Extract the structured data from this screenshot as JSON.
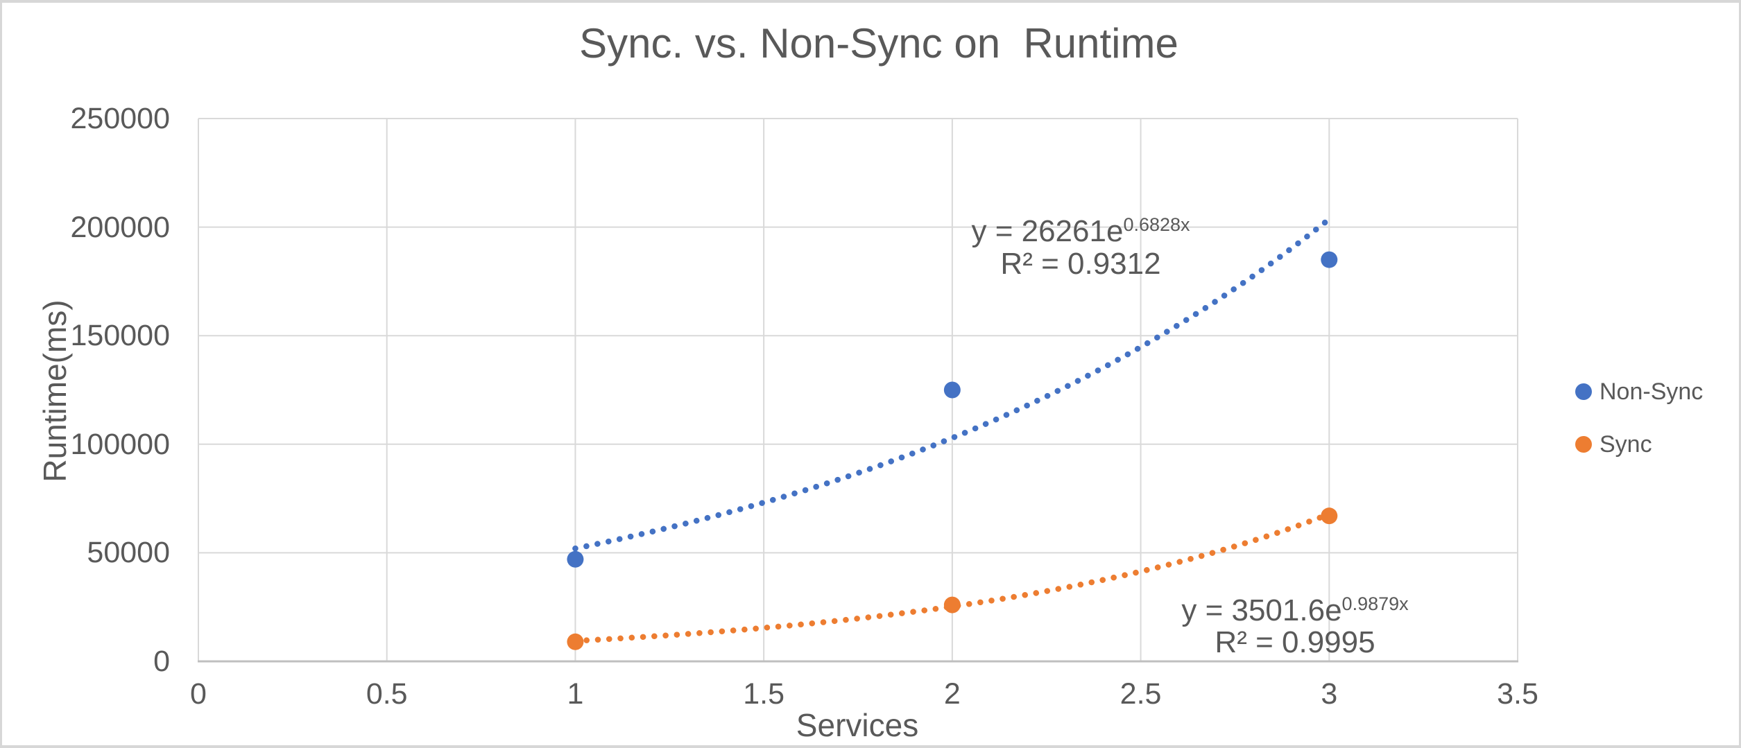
{
  "colors": {
    "non_sync": "#4472C4",
    "sync": "#ED7D31",
    "text": "#595959",
    "gridline": "#D9D9D9",
    "axis_line": "#BFBFBF",
    "frame_border": "#D7D7D7"
  },
  "chart_data": {
    "type": "scatter",
    "title": "Sync. vs. Non-Sync on  Runtime",
    "xlabel": "Services",
    "ylabel": "Runtime(ms)",
    "xlim": [
      0,
      3.5
    ],
    "ylim": [
      0,
      250000
    ],
    "grid": true,
    "legend_position": "right",
    "x_ticks": [
      0,
      0.5,
      1,
      1.5,
      2,
      2.5,
      3,
      3.5
    ],
    "x_tick_labels": [
      "0",
      "0.5",
      "1",
      "1.5",
      "2",
      "2.5",
      "3",
      "3.5"
    ],
    "y_ticks": [
      0,
      50000,
      100000,
      150000,
      200000,
      250000
    ],
    "y_tick_labels": [
      "0",
      "50000",
      "100000",
      "150000",
      "200000",
      "250000"
    ],
    "series": [
      {
        "name": "Non-Sync",
        "color": "#4472C4",
        "points": [
          {
            "x": 1,
            "y": 47000
          },
          {
            "x": 2,
            "y": 125000
          },
          {
            "x": 3,
            "y": 185000
          }
        ],
        "trendline": {
          "type": "exponential",
          "a": 26261,
          "b": 0.6828,
          "x_range": [
            1,
            3
          ],
          "equation_base": "y = 26261e",
          "equation_exponent": "0.6828x",
          "r_squared_label": "R² = 0.9312"
        }
      },
      {
        "name": "Sync",
        "color": "#ED7D31",
        "points": [
          {
            "x": 1,
            "y": 9000
          },
          {
            "x": 2,
            "y": 26000
          },
          {
            "x": 3,
            "y": 67000
          }
        ],
        "trendline": {
          "type": "exponential",
          "a": 3501.6,
          "b": 0.9879,
          "x_range": [
            1,
            3
          ],
          "equation_base": "y = 3501.6e",
          "equation_exponent": "0.9879x",
          "r_squared_label": "R² = 0.9995"
        }
      }
    ]
  }
}
